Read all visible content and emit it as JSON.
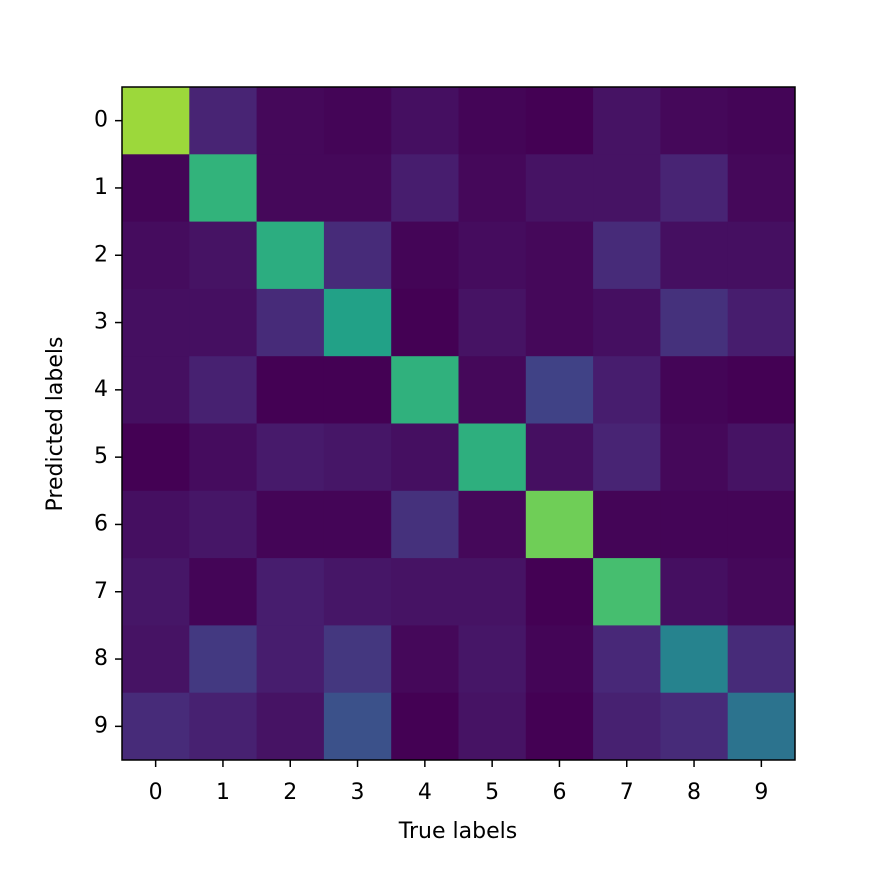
{
  "chart_data": {
    "type": "heatmap",
    "xlabel": "True labels",
    "ylabel": "Predicted labels",
    "x_categories": [
      "0",
      "1",
      "2",
      "3",
      "4",
      "5",
      "6",
      "7",
      "8",
      "9"
    ],
    "y_categories": [
      "0",
      "1",
      "2",
      "3",
      "4",
      "5",
      "6",
      "7",
      "8",
      "9"
    ],
    "colormap": "viridis",
    "clim": [
      0,
      100
    ],
    "z": [
      [
        85,
        10,
        2,
        1,
        4,
        1,
        0,
        5,
        2,
        1
      ],
      [
        1,
        65,
        2,
        2,
        8,
        2,
        5,
        5,
        10,
        2
      ],
      [
        3,
        5,
        62,
        12,
        1,
        3,
        2,
        12,
        4,
        4
      ],
      [
        4,
        4,
        12,
        57,
        0,
        5,
        2,
        4,
        14,
        8
      ],
      [
        4,
        9,
        0,
        0,
        64,
        2,
        20,
        8,
        1,
        0
      ],
      [
        0,
        3,
        7,
        6,
        4,
        63,
        4,
        10,
        2,
        5
      ],
      [
        4,
        6,
        1,
        1,
        14,
        2,
        78,
        1,
        1,
        1
      ],
      [
        6,
        1,
        8,
        6,
        5,
        5,
        0,
        70,
        4,
        2
      ],
      [
        5,
        17,
        8,
        16,
        2,
        6,
        1,
        11,
        45,
        12
      ],
      [
        12,
        9,
        5,
        25,
        0,
        5,
        0,
        9,
        12,
        38
      ]
    ]
  }
}
